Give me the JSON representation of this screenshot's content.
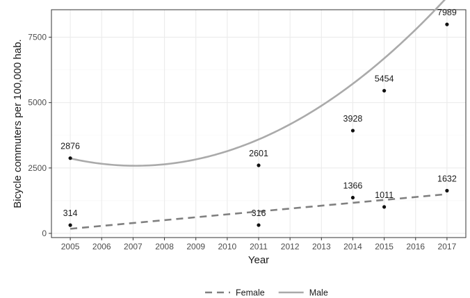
{
  "chart_data": {
    "type": "scatter",
    "title": "",
    "xlabel": "Year",
    "ylabel": "Bicycle commuters per 100,000 hab.",
    "xlim": [
      2004.4,
      2017.6
    ],
    "ylim": [
      -160,
      8550
    ],
    "x_ticks": [
      2005,
      2006,
      2007,
      2008,
      2009,
      2010,
      2011,
      2012,
      2013,
      2014,
      2015,
      2016,
      2017
    ],
    "y_ticks": [
      0,
      2500,
      5000,
      7500
    ],
    "grid": true,
    "legend_position": "bottom",
    "series": [
      {
        "name": "Female",
        "line_style": "dashed",
        "color": "#808080",
        "points": [
          {
            "x": 2005,
            "y": 314
          },
          {
            "x": 2011,
            "y": 316
          },
          {
            "x": 2014,
            "y": 1366
          },
          {
            "x": 2015,
            "y": 1011
          },
          {
            "x": 2017,
            "y": 1632
          }
        ],
        "trend": {
          "method": "linear",
          "start": [
            2005,
            175
          ],
          "end": [
            2017,
            1500
          ]
        }
      },
      {
        "name": "Male",
        "line_style": "solid",
        "color": "#aaaaaa",
        "points": [
          {
            "x": 2005,
            "y": 2876
          },
          {
            "x": 2011,
            "y": 2601
          },
          {
            "x": 2014,
            "y": 3928
          },
          {
            "x": 2015,
            "y": 5454
          },
          {
            "x": 2017,
            "y": 7989
          }
        ],
        "trend": {
          "method": "quadratic",
          "coefficients": [
            2867.4,
            -271.7,
            65.4
          ],
          "origin_year": 2005
        }
      }
    ],
    "point_color": "#111111"
  }
}
